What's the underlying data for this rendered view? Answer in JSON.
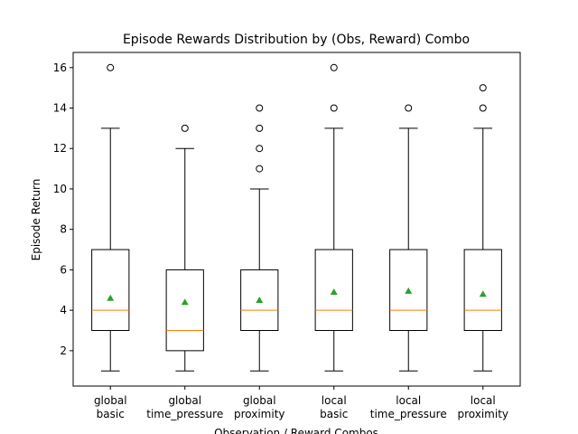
{
  "chart_data": {
    "type": "box",
    "title": "Episode Rewards Distribution by (Obs, Reward) Combo",
    "x_label": "Observation / Reward Combos",
    "y_label": "Episode Return",
    "categories": [
      "global\nbasic",
      "global\ntime_pressure",
      "global\nproximity",
      "local\nbasic",
      "local\ntime_pressure",
      "local\nproximity"
    ],
    "boxes": [
      {
        "whislo": 1,
        "q1": 3,
        "med": 4,
        "q3": 7,
        "whishi": 13,
        "mean": 4.6,
        "fliers": [
          16
        ]
      },
      {
        "whislo": 1,
        "q1": 2,
        "med": 3,
        "q3": 6,
        "whishi": 12,
        "mean": 4.4,
        "fliers": [
          13
        ]
      },
      {
        "whislo": 1,
        "q1": 3,
        "med": 4,
        "q3": 6,
        "whishi": 10,
        "mean": 4.5,
        "fliers": [
          11,
          12,
          13,
          14
        ]
      },
      {
        "whislo": 1,
        "q1": 3,
        "med": 4,
        "q3": 7,
        "whishi": 13,
        "mean": 4.9,
        "fliers": [
          14,
          16
        ]
      },
      {
        "whislo": 1,
        "q1": 3,
        "med": 4,
        "q3": 7,
        "whishi": 13,
        "mean": 4.95,
        "fliers": [
          14
        ]
      },
      {
        "whislo": 1,
        "q1": 3,
        "med": 4,
        "q3": 7,
        "whishi": 13,
        "mean": 4.8,
        "fliers": [
          14,
          15
        ]
      }
    ],
    "median_color": "#ff7f0e",
    "mean_color": "#2ca02c",
    "ylim": [
      0.25,
      16.75
    ],
    "yticks": [
      2,
      4,
      6,
      8,
      10,
      12,
      14,
      16
    ]
  }
}
